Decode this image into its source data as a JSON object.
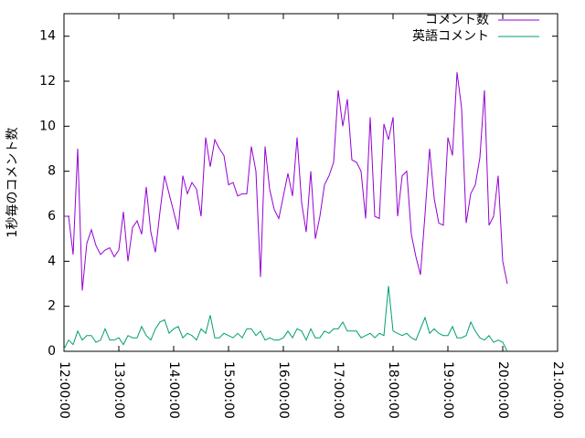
{
  "chart_data": {
    "type": "line",
    "y_label": "1秒毎のコメント数",
    "x": [
      720,
      725,
      730,
      735,
      740,
      745,
      750,
      755,
      760,
      765,
      770,
      775,
      780,
      785,
      790,
      795,
      800,
      805,
      810,
      815,
      820,
      825,
      830,
      835,
      840,
      845,
      850,
      855,
      860,
      865,
      870,
      875,
      880,
      885,
      890,
      895,
      900,
      905,
      910,
      915,
      920,
      925,
      930,
      935,
      940,
      945,
      950,
      955,
      960,
      965,
      970,
      975,
      980,
      985,
      990,
      995,
      1000,
      1005,
      1010,
      1015,
      1020,
      1025,
      1030,
      1035,
      1040,
      1045,
      1050,
      1055,
      1060,
      1065,
      1070,
      1075,
      1080,
      1085,
      1090,
      1095,
      1100,
      1105,
      1110,
      1115,
      1120,
      1125,
      1130,
      1135,
      1140,
      1145,
      1150,
      1155,
      1160,
      1165,
      1170,
      1175,
      1180,
      1185,
      1190,
      1195,
      1200,
      1205
    ],
    "series": [
      {
        "name": "コメント数",
        "color": "#9400d3",
        "values": [
          6.0,
          6.0,
          4.3,
          9.0,
          2.7,
          4.8,
          5.4,
          4.7,
          4.3,
          4.5,
          4.6,
          4.2,
          4.5,
          6.2,
          4.0,
          5.5,
          5.8,
          5.2,
          7.3,
          5.3,
          4.4,
          6.2,
          7.8,
          7.0,
          6.2,
          5.4,
          7.8,
          7.0,
          7.5,
          7.2,
          6.0,
          9.5,
          8.2,
          9.4,
          9.0,
          8.7,
          7.4,
          7.5,
          6.9,
          7.0,
          7.0,
          9.1,
          8.0,
          3.3,
          9.1,
          7.2,
          6.3,
          5.9,
          6.9,
          7.9,
          6.9,
          9.5,
          6.6,
          5.3,
          8.0,
          5.0,
          6.0,
          7.4,
          7.8,
          8.4,
          11.6,
          10.0,
          11.2,
          8.5,
          8.4,
          8.0,
          5.9,
          10.4,
          6.0,
          5.9,
          10.1,
          9.4,
          10.4,
          6.0,
          7.8,
          8.0,
          5.2,
          4.2,
          3.4,
          6.1,
          9.0,
          6.8,
          5.7,
          5.6,
          9.5,
          8.7,
          12.4,
          10.8,
          5.7,
          7.0,
          7.4,
          8.6,
          11.6,
          5.6,
          6.0,
          7.8,
          4.0,
          3.0
        ]
      },
      {
        "name": "英語コメント",
        "color": "#009e73",
        "values": [
          0.1,
          0.5,
          0.3,
          0.9,
          0.5,
          0.7,
          0.7,
          0.4,
          0.5,
          1.0,
          0.5,
          0.5,
          0.6,
          0.3,
          0.7,
          0.6,
          0.6,
          1.1,
          0.7,
          0.5,
          1.0,
          1.3,
          1.4,
          0.8,
          1.0,
          1.1,
          0.6,
          0.8,
          0.7,
          0.5,
          1.0,
          0.8,
          1.6,
          0.6,
          0.6,
          0.8,
          0.7,
          0.6,
          0.8,
          0.6,
          1.0,
          1.0,
          0.7,
          0.9,
          0.5,
          0.6,
          0.5,
          0.5,
          0.6,
          0.9,
          0.6,
          1.0,
          0.9,
          0.5,
          1.0,
          0.6,
          0.6,
          0.9,
          0.8,
          1.0,
          1.0,
          1.3,
          0.9,
          0.9,
          0.9,
          0.6,
          0.7,
          0.8,
          0.6,
          0.8,
          0.7,
          2.9,
          0.9,
          0.8,
          0.7,
          0.8,
          0.6,
          0.5,
          1.0,
          1.5,
          0.8,
          1.0,
          0.8,
          0.7,
          0.7,
          1.1,
          0.6,
          0.6,
          0.7,
          1.3,
          0.9,
          0.6,
          0.5,
          0.7,
          0.4,
          0.5,
          0.4,
          0.0
        ]
      }
    ],
    "xlim": [
      720,
      1260
    ],
    "xticks": [
      {
        "value": 720,
        "label": "12:00:00"
      },
      {
        "value": 780,
        "label": "13:00:00"
      },
      {
        "value": 840,
        "label": "14:00:00"
      },
      {
        "value": 900,
        "label": "15:00:00"
      },
      {
        "value": 960,
        "label": "16:00:00"
      },
      {
        "value": 1020,
        "label": "17:00:00"
      },
      {
        "value": 1080,
        "label": "18:00:00"
      },
      {
        "value": 1140,
        "label": "19:00:00"
      },
      {
        "value": 1200,
        "label": "20:00:00"
      },
      {
        "value": 1260,
        "label": "21:00:00"
      }
    ],
    "ylim": [
      0,
      15
    ],
    "yticks": [
      0,
      2,
      4,
      6,
      8,
      10,
      12,
      14
    ],
    "legend": "top-right",
    "grid": false
  }
}
